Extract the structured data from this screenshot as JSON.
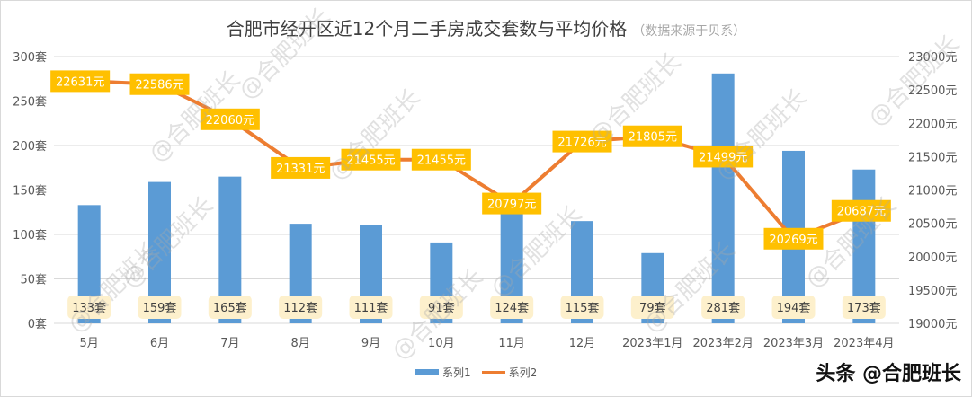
{
  "title": {
    "main": "合肥市经开区近12个月二手房成交套数与平均价格",
    "sub": "（数据来源于贝系）"
  },
  "legend": {
    "series1": "系列1",
    "series2": "系列2"
  },
  "brand": "头条 @合肥班长",
  "watermark": "@合肥班长",
  "colors": {
    "bar": "#5b9bd5",
    "line": "#ed7d31",
    "price_label_bg": "#ffc000",
    "count_label_bg": "#fdf0cc",
    "grid": "#d9d9d9"
  },
  "chart_data": {
    "type": "bar+line",
    "title": "合肥市经开区近12个月二手房成交套数与平均价格（数据来源于贝系）",
    "categories": [
      "5月",
      "6月",
      "7月",
      "8月",
      "9月",
      "10月",
      "11月",
      "12月",
      "2023年1月",
      "2023年2月",
      "2023年3月",
      "2023年4月"
    ],
    "series": [
      {
        "name": "系列1",
        "type": "bar",
        "axis": "left",
        "unit": "套",
        "values": [
          133,
          159,
          165,
          112,
          111,
          91,
          124,
          115,
          79,
          281,
          194,
          173
        ]
      },
      {
        "name": "系列2",
        "type": "line",
        "axis": "right",
        "unit": "元",
        "values": [
          22631,
          22586,
          22060,
          21331,
          21455,
          21455,
          20797,
          21726,
          21805,
          21499,
          20269,
          20687
        ]
      }
    ],
    "left_axis": {
      "min": 0,
      "max": 300,
      "step": 50,
      "ticks": [
        "0套",
        "50套",
        "100套",
        "150套",
        "200套",
        "250套",
        "300套"
      ]
    },
    "right_axis": {
      "min": 19000,
      "max": 23000,
      "step": 500,
      "ticks": [
        "19000元",
        "19500元",
        "20000元",
        "20500元",
        "21000元",
        "21500元",
        "22000元",
        "22500元",
        "23000元"
      ]
    },
    "grid": true,
    "legend_position": "bottom"
  }
}
